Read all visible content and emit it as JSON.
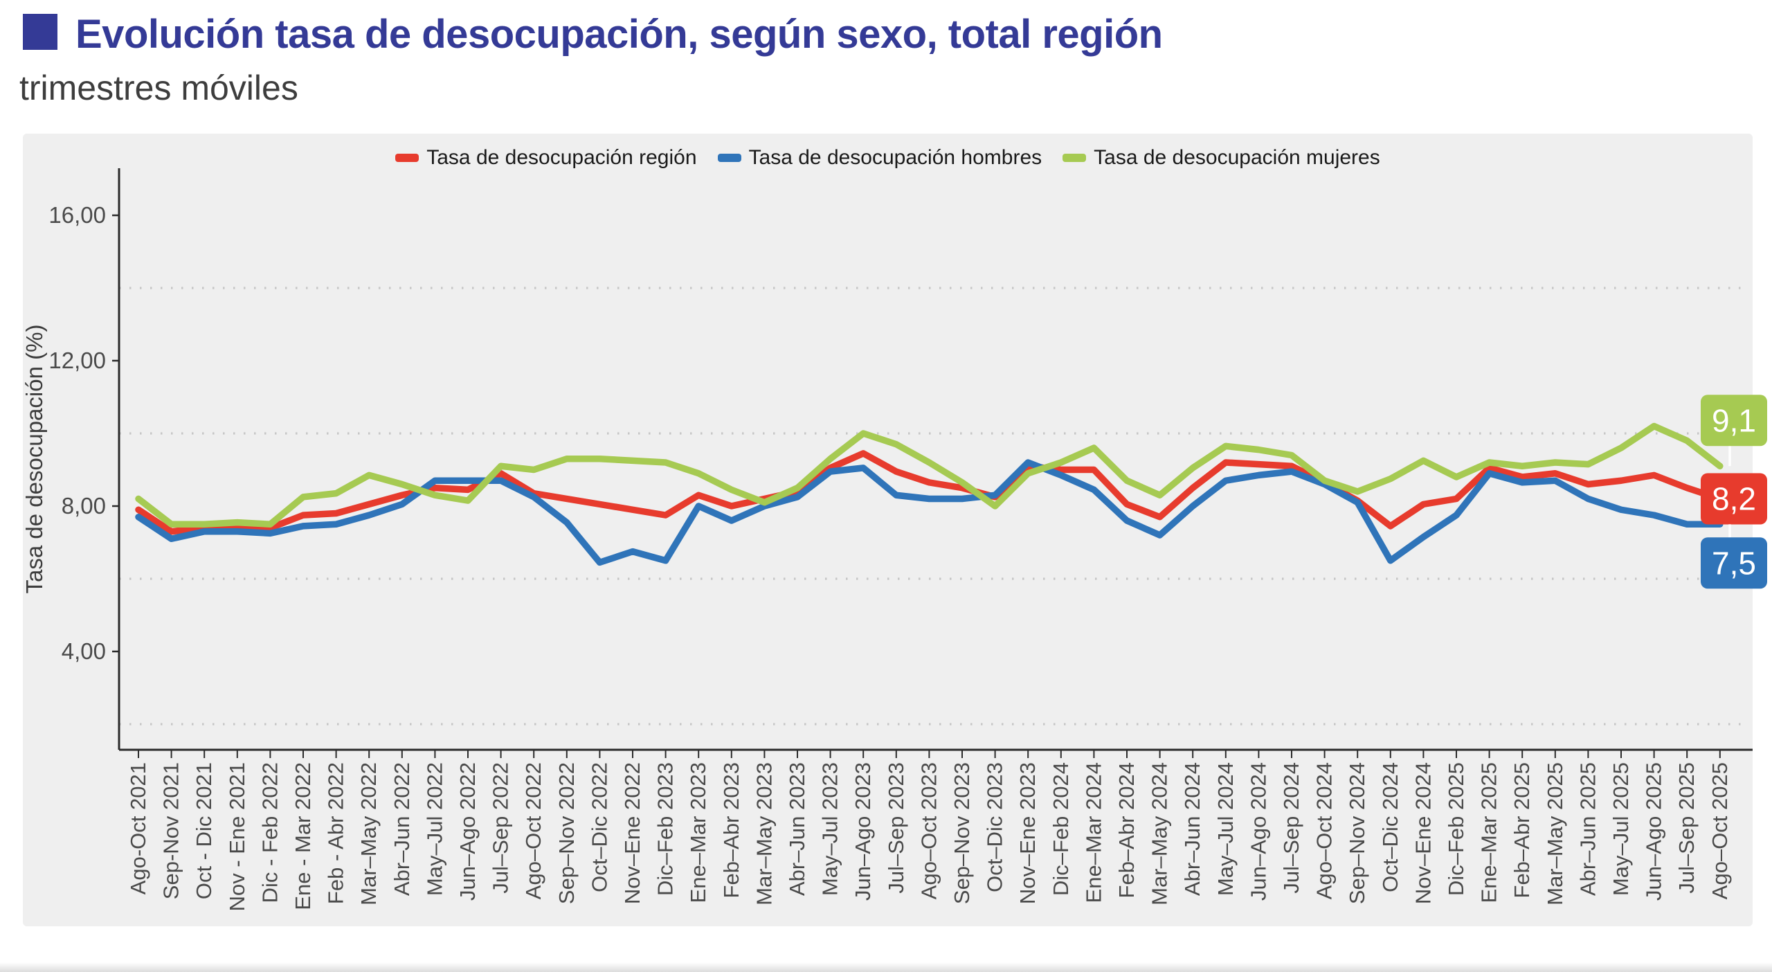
{
  "header": {
    "title": "Evolución tasa de desocupación, según sexo, total región",
    "subtitle": "trimestres móviles",
    "title_color": "#343a96",
    "bullet_color": "#343a96"
  },
  "legend": {
    "position": "top center",
    "items": [
      {
        "label": "Tasa de desocupación región",
        "color": "#e73b2d"
      },
      {
        "label": "Tasa de desocupación hombres",
        "color": "#2f74b9"
      },
      {
        "label": "Tasa de desocupación mujeres",
        "color": "#a6ca52"
      }
    ]
  },
  "chart_data": {
    "type": "line",
    "title": "Evolución tasa de desocupación, según sexo, total región",
    "subtitle": "trimestres móviles",
    "ylabel": "Tasa de desocupación (%)",
    "xlabel": "",
    "ylim": [
      1.3,
      17.3
    ],
    "grid": "dotted horizontal",
    "legend_position": "top center",
    "panel_background": "#efefef",
    "axis_color": "#2b2b2b",
    "grid_color": "#c6c6c6",
    "yticks_labeled": [
      {
        "value": 16,
        "label": "16,00"
      },
      {
        "value": 12,
        "label": "12,00"
      },
      {
        "value": 8,
        "label": "8,00"
      },
      {
        "value": 4,
        "label": "4,00"
      }
    ],
    "yticks_dotted": [
      14,
      10,
      6,
      2
    ],
    "categories": [
      "Ago-Oct 2021",
      "Sep-Nov 2021",
      "Oct - Dic 2021",
      "Nov - Ene 2021",
      "Dic - Feb 2022",
      "Ene - Mar 2022",
      "Feb - Abr 2022",
      "Mar–May 2022",
      "Abr–Jun 2022",
      "May–Jul 2022",
      "Jun–Ago 2022",
      "Jul–Sep 2022",
      "Ago–Oct 2022",
      "Sep–Nov 2022",
      "Oct–Dic 2022",
      "Nov–Ene 2022",
      "Dic–Feb 2023",
      "Ene–Mar 2023",
      "Feb–Abr 2023",
      "Mar–May 2023",
      "Abr–Jun 2023",
      "May–Jul 2023",
      "Jun–Ago 2023",
      "Jul–Sep 2023",
      "Ago–Oct 2023",
      "Sep–Nov 2023",
      "Oct–Dic 2023",
      "Nov–Ene 2023",
      "Dic–Feb 2024",
      "Ene–Mar 2024",
      "Feb–Abr 2024",
      "Mar–May 2024",
      "Abr–Jun 2024",
      "May–Jul 2024",
      "Jun–Ago 2024",
      "Jul–Sep 2024",
      "Ago–Oct 2024",
      "Sep–Nov 2024",
      "Oct–Dic 2024",
      "Nov–Ene 2024",
      "Dic–Feb 2025",
      "Ene–Mar 2025",
      "Feb–Abr 2025",
      "Mar–May 2025",
      "Abr–Jun 2025",
      "May–Jul 2025",
      "Jun–Ago 2025",
      "Jul–Sep 2025",
      "Ago–Oct 2025"
    ],
    "series": [
      {
        "name": "Tasa de desocupación región",
        "color": "#e73b2d",
        "end_label": "8,2",
        "values": [
          7.9,
          7.3,
          7.4,
          7.45,
          7.4,
          7.75,
          7.8,
          8.05,
          8.3,
          8.5,
          8.45,
          8.9,
          8.35,
          8.2,
          8.05,
          7.9,
          7.75,
          8.3,
          8.0,
          8.2,
          8.4,
          9.05,
          9.45,
          8.95,
          8.65,
          8.5,
          8.25,
          9.1,
          9.0,
          9.0,
          8.05,
          7.7,
          8.5,
          9.2,
          9.15,
          9.1,
          8.65,
          8.15,
          7.45,
          8.05,
          8.2,
          9.05,
          8.8,
          8.9,
          8.6,
          8.7,
          8.85,
          8.5,
          8.2
        ]
      },
      {
        "name": "Tasa de desocupación hombres",
        "color": "#2f74b9",
        "end_label": "7,5",
        "values": [
          7.7,
          7.1,
          7.3,
          7.3,
          7.25,
          7.45,
          7.5,
          7.75,
          8.05,
          8.7,
          8.7,
          8.7,
          8.25,
          7.55,
          6.45,
          6.75,
          6.5,
          8.0,
          7.6,
          8.0,
          8.25,
          8.95,
          9.05,
          8.3,
          8.2,
          8.2,
          8.3,
          9.2,
          8.85,
          8.45,
          7.6,
          7.2,
          8.0,
          8.7,
          8.85,
          8.95,
          8.6,
          8.1,
          6.5,
          7.15,
          7.75,
          8.9,
          8.65,
          8.7,
          8.2,
          7.9,
          7.75,
          7.5,
          7.5
        ]
      },
      {
        "name": "Tasa de desocupación mujeres",
        "color": "#a6ca52",
        "end_label": "9,1",
        "values": [
          8.2,
          7.5,
          7.5,
          7.55,
          7.5,
          8.25,
          8.35,
          8.85,
          8.6,
          8.3,
          8.15,
          9.1,
          9.0,
          9.3,
          9.3,
          9.25,
          9.2,
          8.9,
          8.45,
          8.1,
          8.5,
          9.3,
          10.0,
          9.7,
          9.2,
          8.65,
          8.0,
          8.9,
          9.2,
          9.6,
          8.7,
          8.3,
          9.05,
          9.65,
          9.55,
          9.4,
          8.7,
          8.4,
          8.75,
          9.25,
          8.8,
          9.2,
          9.1,
          9.2,
          9.15,
          9.6,
          10.2,
          9.8,
          9.1
        ]
      }
    ],
    "end_label_text_color": "#ffffff"
  }
}
